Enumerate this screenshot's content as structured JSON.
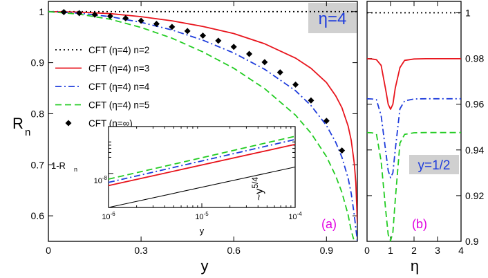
{
  "chart_data": [
    {
      "id": "a",
      "type": "line",
      "panel_label": "(a)",
      "tag": "η=4",
      "xlabel": "y",
      "ylabel": "R",
      "ylabel_sub": "n",
      "xlim": [
        0,
        1
      ],
      "ylim": [
        0.55,
        1.02
      ],
      "xticks": [
        0,
        0.3,
        0.6,
        0.9
      ],
      "xtick_labels": [
        "0",
        "0.3",
        "0.6",
        "0.9"
      ],
      "yticks": [
        0.6,
        0.7,
        0.8,
        0.9,
        1.0
      ],
      "ytick_labels": [
        "0.6",
        "0.7",
        "0.8",
        "0.9",
        "1"
      ],
      "legend_position": "left",
      "series": [
        {
          "name": "CFT (η=4) n=2",
          "color": "#000000",
          "style": "dotted",
          "x": [
            0,
            1.0
          ],
          "y": [
            1.0,
            1.0
          ]
        },
        {
          "name": "CFT (η=4) n=3",
          "color": "#e8141c",
          "style": "solid",
          "x": [
            0,
            0.1,
            0.2,
            0.3,
            0.4,
            0.5,
            0.6,
            0.7,
            0.8,
            0.85,
            0.9,
            0.93,
            0.95,
            0.97,
            0.98,
            0.99,
            0.995,
            1.0
          ],
          "y": [
            1.0,
            0.999,
            0.996,
            0.99,
            0.982,
            0.971,
            0.957,
            0.937,
            0.909,
            0.889,
            0.861,
            0.835,
            0.812,
            0.776,
            0.748,
            0.703,
            0.665,
            0.585
          ]
        },
        {
          "name": "CFT (η=4) n=4",
          "color": "#1e3cdc",
          "style": "dashdot",
          "x": [
            0,
            0.1,
            0.2,
            0.3,
            0.4,
            0.5,
            0.6,
            0.7,
            0.8,
            0.85,
            0.9,
            0.93,
            0.95,
            0.97,
            0.98,
            0.99,
            1.0
          ],
          "y": [
            1.0,
            0.997,
            0.99,
            0.979,
            0.964,
            0.944,
            0.919,
            0.887,
            0.845,
            0.816,
            0.777,
            0.744,
            0.715,
            0.674,
            0.644,
            0.602,
            0.55
          ]
        },
        {
          "name": "CFT (η=4) n=5",
          "color": "#22cc22",
          "style": "dashed",
          "x": [
            0,
            0.1,
            0.2,
            0.3,
            0.4,
            0.5,
            0.6,
            0.7,
            0.8,
            0.85,
            0.9,
            0.93,
            0.95,
            0.97,
            0.98,
            0.99
          ],
          "y": [
            1.0,
            0.995,
            0.985,
            0.969,
            0.948,
            0.921,
            0.889,
            0.849,
            0.797,
            0.762,
            0.716,
            0.678,
            0.646,
            0.602,
            0.571,
            0.55
          ]
        },
        {
          "name": "CFT (η=∞)",
          "color": "#000000",
          "style": "marker",
          "x": [
            0.05,
            0.1,
            0.15,
            0.2,
            0.25,
            0.3,
            0.35,
            0.4,
            0.45,
            0.5,
            0.55,
            0.6,
            0.65,
            0.7,
            0.75,
            0.8,
            0.85,
            0.9,
            0.95
          ],
          "y": [
            0.999,
            0.997,
            0.994,
            0.991,
            0.987,
            0.982,
            0.976,
            0.97,
            0.962,
            0.953,
            0.943,
            0.931,
            0.917,
            0.901,
            0.881,
            0.857,
            0.826,
            0.786,
            0.728
          ]
        }
      ]
    },
    {
      "id": "inset",
      "type": "line",
      "xlabel": "y",
      "ylabel": "1-R",
      "ylabel_sub": "n",
      "annotation": "~y",
      "annotation_sup": "5/4",
      "xscale": "log",
      "yscale": "log",
      "xlim": [
        1e-06,
        0.0001
      ],
      "xticks": [
        1e-06,
        1e-05,
        0.0001
      ],
      "xtick_base": "10",
      "xtick_exps": [
        "-6",
        "-5",
        "-4"
      ],
      "ytick_base": "10",
      "ytick_exp": "-8",
      "series": [
        {
          "name": "n=3",
          "color": "#e8141c",
          "style": "solid",
          "x": [
            1e-06,
            0.0001
          ],
          "y": [
            0.27,
            0.78
          ]
        },
        {
          "name": "n=4",
          "color": "#1e3cdc",
          "style": "dashdot",
          "x": [
            1e-06,
            0.0001
          ],
          "y": [
            0.31,
            0.84
          ]
        },
        {
          "name": "n=5",
          "color": "#22cc22",
          "style": "dashed",
          "x": [
            1e-06,
            0.0001
          ],
          "y": [
            0.35,
            0.88
          ]
        },
        {
          "name": "y^(5/4)",
          "color": "#000000",
          "style": "solid",
          "x": [
            1e-06,
            0.0001
          ],
          "y": [
            0.0,
            0.5
          ]
        }
      ]
    },
    {
      "id": "b",
      "type": "line",
      "panel_label": "(b)",
      "tag": "y=1/2",
      "xlabel": "η",
      "xlim": [
        0,
        4
      ],
      "ylim": [
        0.9,
        1.005
      ],
      "xticks": [
        0,
        1,
        2,
        3,
        4
      ],
      "xtick_labels": [
        "0",
        "1",
        "2",
        "3",
        "4"
      ],
      "yticks": [
        0.9,
        0.92,
        0.94,
        0.96,
        0.98,
        1.0
      ],
      "ytick_labels": [
        "0.9",
        "0.92",
        "0.94",
        "0.96",
        "0.98",
        "1"
      ],
      "series": [
        {
          "name": "n=2",
          "color": "#000000",
          "style": "dotted",
          "x": [
            0,
            4
          ],
          "y": [
            1.0,
            1.0
          ]
        },
        {
          "name": "n=3",
          "color": "#e8141c",
          "style": "solid",
          "x": [
            0,
            0.2,
            0.4,
            0.6,
            0.8,
            0.9,
            1.0,
            1.1,
            1.2,
            1.4,
            1.6,
            2.0,
            2.5,
            3.0,
            4.0
          ],
          "y": [
            0.9799,
            0.9798,
            0.9795,
            0.977,
            0.966,
            0.96,
            0.9578,
            0.96,
            0.967,
            0.976,
            0.9792,
            0.9798,
            0.9799,
            0.9799,
            0.9799
          ]
        },
        {
          "name": "n=4",
          "color": "#1e3cdc",
          "style": "dashdot",
          "x": [
            0,
            0.2,
            0.4,
            0.6,
            0.8,
            0.9,
            1.0,
            1.1,
            1.2,
            1.4,
            1.6,
            2.0,
            2.5,
            3.0,
            4.0
          ],
          "y": [
            0.9624,
            0.9623,
            0.962,
            0.955,
            0.939,
            0.931,
            0.9278,
            0.93,
            0.94,
            0.958,
            0.9615,
            0.9623,
            0.9624,
            0.9624,
            0.9624
          ]
        },
        {
          "name": "n=5",
          "color": "#22cc22",
          "style": "dashed",
          "x": [
            0,
            0.2,
            0.4,
            0.6,
            0.8,
            0.9,
            1.0,
            1.1,
            1.2,
            1.4,
            1.6,
            2.0,
            2.5,
            3.0,
            4.0
          ],
          "y": [
            0.9476,
            0.9475,
            0.947,
            0.935,
            0.913,
            0.903,
            0.9002,
            0.904,
            0.918,
            0.943,
            0.9468,
            0.9475,
            0.9476,
            0.9476,
            0.9476
          ]
        }
      ]
    }
  ],
  "colors": {
    "tag_background": "#d0d0d0",
    "tag_a_text": "#1e3cdc",
    "tag_b_text": "#1e3cdc",
    "panel_label": "#e000e0"
  }
}
